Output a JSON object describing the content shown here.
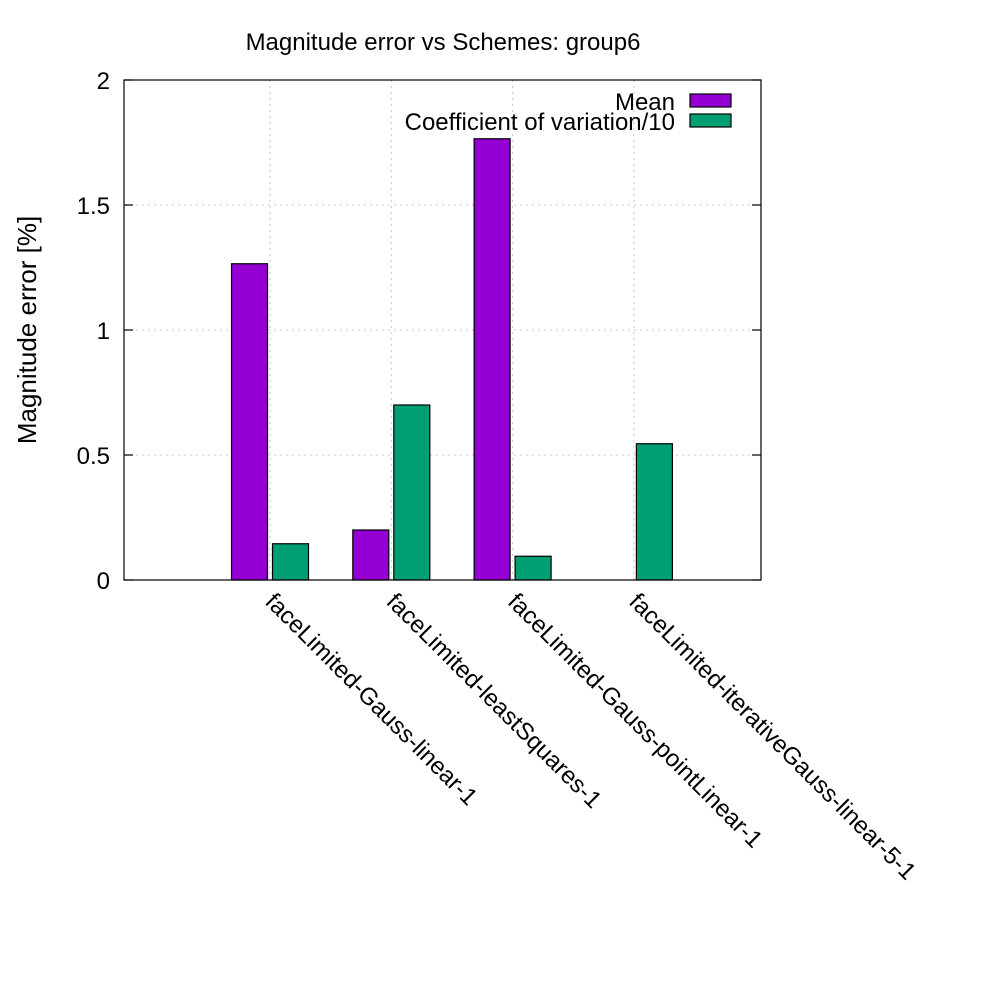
{
  "chart_data": {
    "type": "bar",
    "title": "Magnitude error vs Schemes: group6",
    "xlabel": "",
    "ylabel": "Magnitude error [%]",
    "ylim": [
      0,
      2
    ],
    "yticks": [
      0,
      0.5,
      1,
      1.5,
      2
    ],
    "ytick_labels": [
      "0",
      "0.5",
      "1",
      "1.5",
      "2"
    ],
    "grid": true,
    "legend_position": "top-right",
    "categories": [
      "faceLimited-Gauss-linear-1",
      "faceLimited-leastSquares-1",
      "faceLimited-Gauss-pointLinear-1",
      "faceLimited-iterativeGauss-linear-5-1"
    ],
    "series": [
      {
        "name": "Mean",
        "color": "#9400d3",
        "values": [
          1.265,
          0.2,
          1.765,
          0
        ]
      },
      {
        "name": "Coefficient of variation/10",
        "color": "#009e73",
        "values": [
          0.145,
          0.7,
          0.095,
          0.545
        ]
      }
    ]
  }
}
